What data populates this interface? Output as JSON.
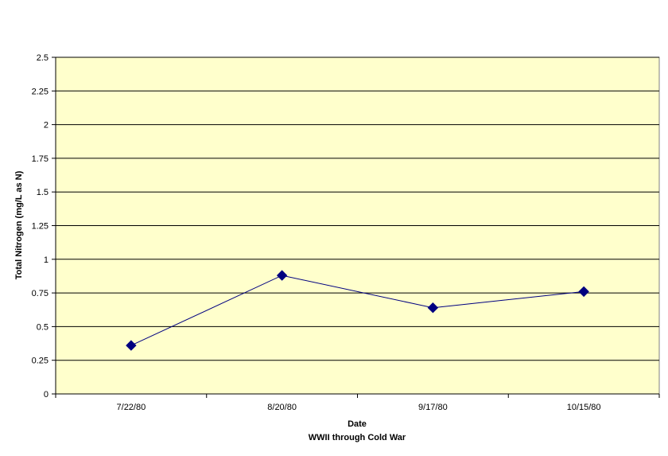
{
  "chart_data": {
    "type": "line",
    "title": "",
    "xlabel": "Date",
    "xlabel_sub": "WWII through Cold War",
    "ylabel": "Total Nitrogen (mg/L as N)",
    "ylim": [
      0,
      2.5
    ],
    "yticks": [
      "0",
      "0.25",
      "0.5",
      "0.75",
      "1",
      "1.25",
      "1.5",
      "1.75",
      "2",
      "2.25",
      "2.5"
    ],
    "categories": [
      "7/22/80",
      "8/20/80",
      "9/17/80",
      "10/15/80"
    ],
    "series": [
      {
        "values": [
          0.36,
          0.88,
          0.64,
          0.76
        ]
      }
    ],
    "grid": true,
    "legend": "none",
    "colors": {
      "plot_background": "#FFFFCC",
      "series_line": "#000080",
      "marker": "#000080",
      "grid": "#000000"
    }
  }
}
